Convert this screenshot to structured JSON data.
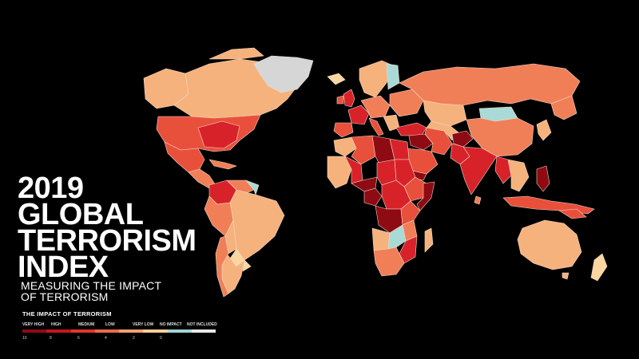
{
  "title": {
    "line1": "2019",
    "line2": "GLOBAL",
    "line3": "TERRORISM",
    "line4": "INDEX"
  },
  "subtitle": {
    "line1": "MEASURING THE IMPACT",
    "line2": "OF TERRORISM"
  },
  "legend": {
    "title": "THE IMPACT OF TERRORISM",
    "categories": [
      "VERY HIGH",
      "HIGH",
      "MEDIUM",
      "LOW",
      "VERY LOW",
      "NO IMPACT",
      "NOT INCLUDED"
    ],
    "ticks": [
      "10",
      "8",
      "6",
      "4",
      "2",
      "0"
    ],
    "colors": [
      "#8e0b14",
      "#c8141d",
      "#e3352f",
      "#ec6b4c",
      "#f4a070",
      "#f8cf95",
      "#9fd6d3",
      "#e8e8e8"
    ]
  },
  "colors": {
    "background": "#000000",
    "very_high": "#8e0b14",
    "high": "#d8222a",
    "medium": "#e9503c",
    "low": "#f07f58",
    "very_low": "#f6b27c",
    "minimal": "#fbd6a0",
    "no_impact": "#a9dad6",
    "not_included": "#d6d6d6"
  }
}
